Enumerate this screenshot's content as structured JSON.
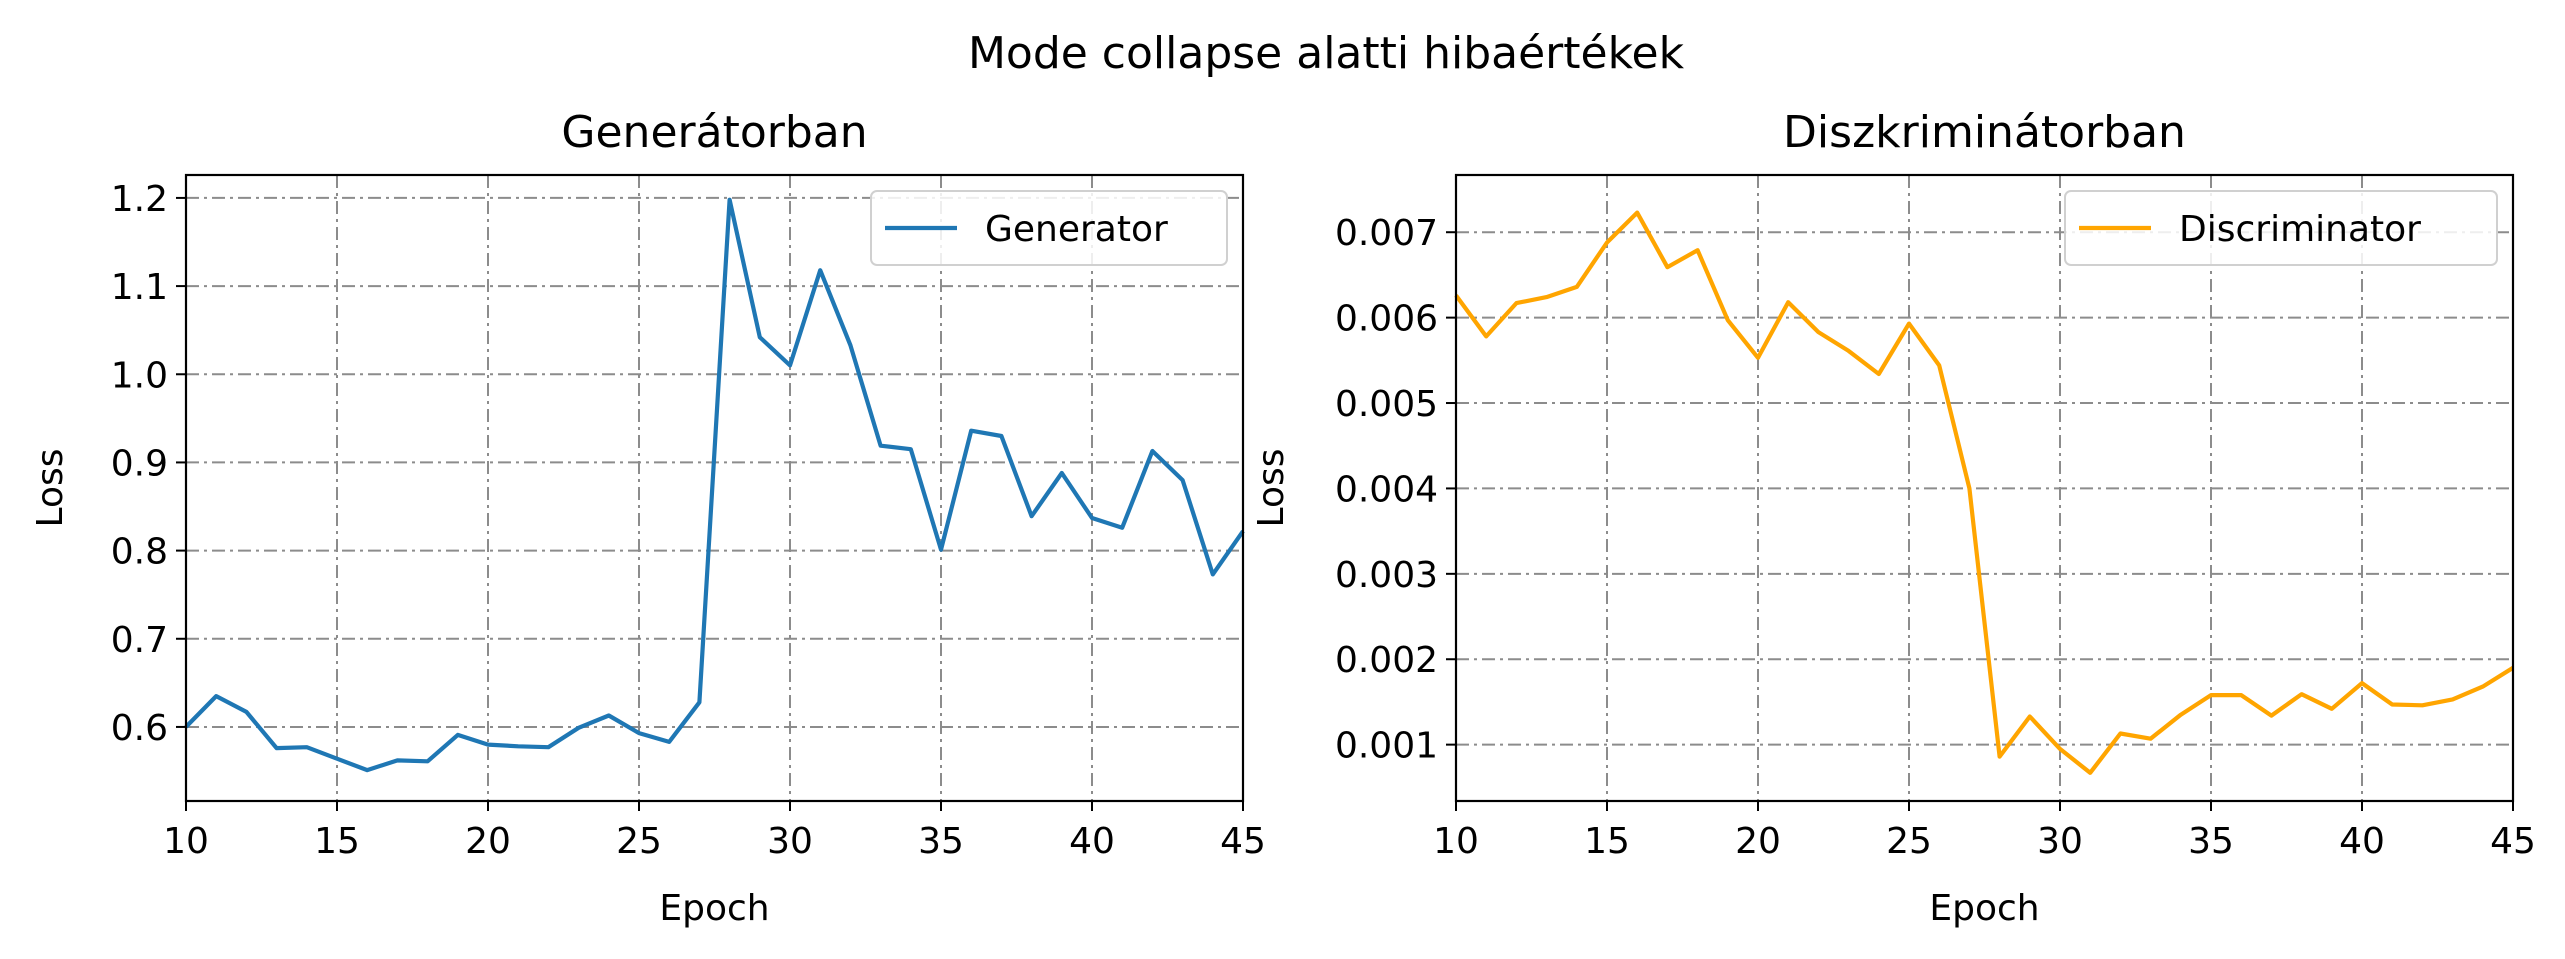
{
  "suptitle": "Mode collapse alatti hibaértékek",
  "chart_data": [
    {
      "type": "line",
      "title": "Generátorban",
      "xlabel": "Epoch",
      "ylabel": "Loss",
      "xlim": [
        10,
        45
      ],
      "ylim": [
        0.516,
        1.226
      ],
      "xticks": [
        10,
        15,
        20,
        25,
        30,
        35,
        40,
        45
      ],
      "xtick_labels": [
        "10",
        "15",
        "20",
        "25",
        "30",
        "35",
        "40",
        "45"
      ],
      "yticks": [
        0.6,
        0.7,
        0.8,
        0.9,
        1.0,
        1.1,
        1.2
      ],
      "ytick_labels": [
        "0.6",
        "0.7",
        "0.8",
        "0.9",
        "1.0",
        "1.1",
        "1.2"
      ],
      "grid": true,
      "legend": "top-right",
      "series": [
        {
          "name": "Generator",
          "color": "#1f77b4",
          "x": [
            10,
            11,
            12,
            13,
            14,
            15,
            16,
            17,
            18,
            19,
            20,
            21,
            22,
            23,
            24,
            25,
            26,
            27,
            28,
            29,
            30,
            31,
            32,
            33,
            34,
            35,
            36,
            37,
            38,
            39,
            40,
            41,
            42,
            43,
            44,
            45
          ],
          "y": [
            0.6,
            0.635,
            0.617,
            0.576,
            0.577,
            0.564,
            0.551,
            0.562,
            0.561,
            0.591,
            0.58,
            0.578,
            0.577,
            0.599,
            0.613,
            0.593,
            0.583,
            0.628,
            1.198,
            1.042,
            1.01,
            1.118,
            1.033,
            0.919,
            0.915,
            0.801,
            0.936,
            0.93,
            0.839,
            0.888,
            0.837,
            0.826,
            0.913,
            0.88,
            0.773,
            0.822
          ]
        }
      ]
    },
    {
      "type": "line",
      "title": "Diszkriminátorban",
      "xlabel": "Epoch",
      "ylabel": "Loss",
      "xlim": [
        10,
        45
      ],
      "ylim": [
        0.00034,
        0.00767
      ],
      "xticks": [
        10,
        15,
        20,
        25,
        30,
        35,
        40,
        45
      ],
      "xtick_labels": [
        "10",
        "15",
        "20",
        "25",
        "30",
        "35",
        "40",
        "45"
      ],
      "yticks": [
        0.001,
        0.002,
        0.003,
        0.004,
        0.005,
        0.006,
        0.007
      ],
      "ytick_labels": [
        "0.001",
        "0.002",
        "0.003",
        "0.004",
        "0.005",
        "0.006",
        "0.007"
      ],
      "grid": true,
      "legend": "top-right",
      "series": [
        {
          "name": "Discriminator",
          "color": "#ffa500",
          "x": [
            10,
            11,
            12,
            13,
            14,
            15,
            16,
            17,
            18,
            19,
            20,
            21,
            22,
            23,
            24,
            25,
            26,
            27,
            28,
            29,
            30,
            31,
            32,
            33,
            34,
            35,
            36,
            37,
            38,
            39,
            40,
            41,
            42,
            43,
            44,
            45
          ],
          "y": [
            0.00626,
            0.00578,
            0.00617,
            0.00624,
            0.00636,
            0.00688,
            0.00723,
            0.00659,
            0.00679,
            0.00597,
            0.00553,
            0.00618,
            0.00583,
            0.00561,
            0.00534,
            0.00593,
            0.00544,
            0.004,
            0.00086,
            0.00133,
            0.00095,
            0.00067,
            0.00113,
            0.00107,
            0.00135,
            0.00158,
            0.00158,
            0.00134,
            0.00159,
            0.00142,
            0.00172,
            0.00147,
            0.00146,
            0.00153,
            0.00168,
            0.0019
          ]
        }
      ]
    }
  ]
}
